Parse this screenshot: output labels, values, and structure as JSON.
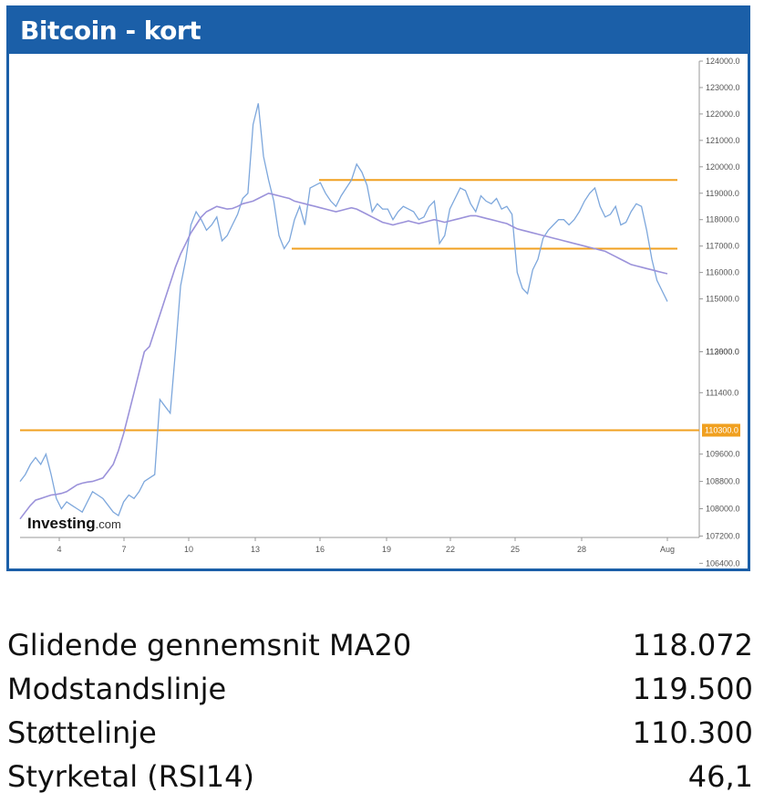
{
  "panel": {
    "title": "Bitcoin - kort",
    "watermark_bold": "Investing",
    "watermark_light": ".com"
  },
  "chart_data": {
    "type": "line",
    "title": "Bitcoin - kort",
    "x_tick_labels": [
      "4",
      "7",
      "10",
      "13",
      "16",
      "19",
      "22",
      "25",
      "28",
      "Aug"
    ],
    "y_tick_labels": [
      "124000.0",
      "123000.0",
      "122000.0",
      "121000.0",
      "120000.0",
      "119000.0",
      "118000.0",
      "117000.0",
      "116000.0",
      "115000.0",
      "113000.0",
      "112600.0",
      "111400.0",
      "109600.0",
      "108800.0",
      "108000.0",
      "107200.0",
      "106400.0"
    ],
    "y_highlight_label": "110300.0",
    "grid": false,
    "series": [
      {
        "role": "price",
        "color": "#7da7dc",
        "values": [
          108800,
          109000,
          109300,
          109500,
          109300,
          109600,
          109000,
          108300,
          108000,
          108200,
          108100,
          108000,
          107900,
          108200,
          108500,
          108400,
          108300,
          108100,
          107900,
          107800,
          108200,
          108400,
          108300,
          108500,
          108800,
          108900,
          109000,
          111200,
          111000,
          110800,
          113000,
          115500,
          116500,
          117800,
          118300,
          118000,
          117600,
          117800,
          118100,
          117200,
          117400,
          117800,
          118200,
          118800,
          119000,
          121600,
          122400,
          120400,
          119500,
          118700,
          117400,
          116900,
          117200,
          118000,
          118500,
          117800,
          119200,
          119300,
          119400,
          119000,
          118700,
          118500,
          118900,
          119200,
          119500,
          120100,
          119800,
          119300,
          118300,
          118600,
          118400,
          118400,
          118000,
          118300,
          118500,
          118400,
          118300,
          118000,
          118100,
          118500,
          118700,
          117100,
          117400,
          118400,
          118800,
          119200,
          119100,
          118600,
          118300,
          118900,
          118700,
          118600,
          118800,
          118400,
          118500,
          118200,
          116000,
          115400,
          115200,
          116100,
          116500,
          117300,
          117600,
          117800,
          118000,
          118000,
          117800,
          118000,
          118300,
          118700,
          119000,
          119200,
          118500,
          118100,
          118200,
          118500,
          117800,
          117900,
          118300,
          118600,
          118500,
          117600,
          116500,
          115700,
          115300,
          114900
        ]
      },
      {
        "role": "ma20",
        "color": "#9b92da",
        "values": [
          107700,
          107900,
          108100,
          108250,
          108300,
          108350,
          108400,
          108420,
          108450,
          108500,
          108600,
          108700,
          108750,
          108780,
          108800,
          108850,
          108900,
          109100,
          109300,
          109700,
          110200,
          110800,
          111400,
          112000,
          112600,
          113200,
          113800,
          114400,
          115000,
          115600,
          116200,
          116700,
          117100,
          117500,
          117800,
          118100,
          118300,
          118400,
          118500,
          118450,
          118400,
          118420,
          118500,
          118600,
          118650,
          118700,
          118800,
          118900,
          119000,
          118950,
          118900,
          118850,
          118800,
          118700,
          118650,
          118600,
          118550,
          118500,
          118450,
          118400,
          118350,
          118300,
          118350,
          118400,
          118450,
          118400,
          118300,
          118200,
          118100,
          118000,
          117900,
          117850,
          117800,
          117850,
          117900,
          117950,
          117900,
          117850,
          117900,
          117950,
          118000,
          117950,
          117900,
          117950,
          118000,
          118050,
          118100,
          118150,
          118150,
          118100,
          118050,
          118000,
          117950,
          117900,
          117850,
          117750,
          117650,
          117600,
          117550,
          117500,
          117450,
          117400,
          117350,
          117300,
          117250,
          117200,
          117150,
          117100,
          117050,
          117000,
          116950,
          116900,
          116850,
          116800,
          116700,
          116600,
          116500,
          116400,
          116300,
          116250,
          116200,
          116150,
          116100,
          116050,
          116000,
          115950
        ]
      }
    ],
    "horizontal_lines": [
      {
        "name": "Modstandslinje",
        "value": 119500,
        "color": "#f0a020"
      },
      {
        "name": "Støttelinje",
        "value": 116900,
        "color": "#f0a020"
      },
      {
        "name": "Støttelinje",
        "value": 110300,
        "color": "#f0a020"
      }
    ]
  },
  "stats": [
    {
      "label": "Glidende gennemsnit MA20",
      "value": "118.072"
    },
    {
      "label": "Modstandslinje",
      "value": "119.500"
    },
    {
      "label": "Støttelinje",
      "value": "110.300"
    },
    {
      "label": "Styrketal (RSI14)",
      "value": "46,1"
    }
  ]
}
